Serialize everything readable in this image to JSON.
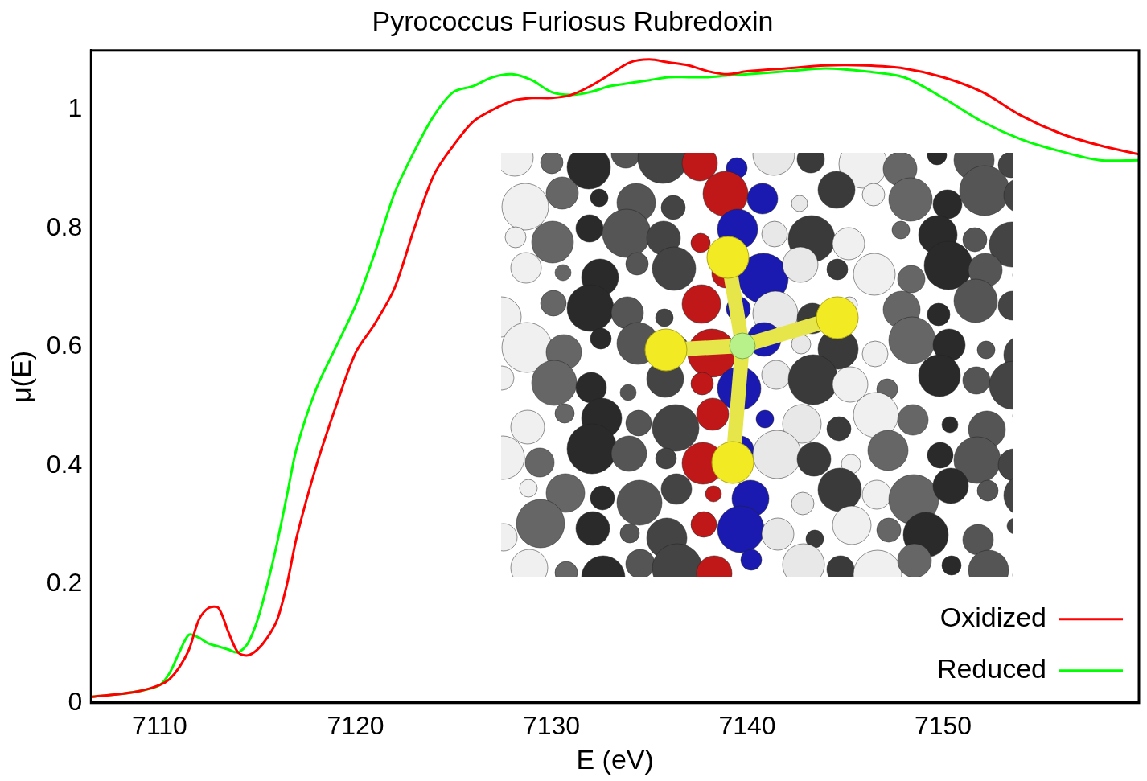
{
  "chart_data": {
    "type": "line",
    "title": "Pyrococcus Furiosus Rubredoxin",
    "x_label": "E (eV)",
    "y_label": "μ(E)",
    "x": [
      7106.5,
      7108,
      7109,
      7110,
      7110.5,
      7111,
      7111.5,
      7112,
      7112.5,
      7113,
      7113.5,
      7114,
      7114.5,
      7115,
      7115.5,
      7116,
      7116.5,
      7117,
      7118,
      7119,
      7120,
      7121,
      7122,
      7123,
      7124,
      7125,
      7126,
      7127,
      7128,
      7129,
      7130,
      7131,
      7132,
      7133,
      7134,
      7135,
      7136,
      7137,
      7138,
      7139,
      7140,
      7142,
      7144,
      7146,
      7148,
      7150,
      7152,
      7154,
      7156,
      7158,
      7160
    ],
    "series": [
      {
        "name": "Oxidized",
        "color": "#ff0000",
        "values": [
          0.01,
          0.015,
          0.02,
          0.03,
          0.04,
          0.06,
          0.09,
          0.14,
          0.16,
          0.16,
          0.12,
          0.085,
          0.08,
          0.09,
          0.11,
          0.14,
          0.2,
          0.28,
          0.4,
          0.5,
          0.59,
          0.64,
          0.7,
          0.8,
          0.89,
          0.94,
          0.98,
          1.0,
          1.015,
          1.02,
          1.02,
          1.025,
          1.04,
          1.06,
          1.08,
          1.085,
          1.08,
          1.075,
          1.065,
          1.06,
          1.065,
          1.07,
          1.075,
          1.075,
          1.07,
          1.055,
          1.03,
          0.99,
          0.96,
          0.94,
          0.925
        ]
      },
      {
        "name": "Reduced",
        "color": "#00ff00",
        "values": [
          0.01,
          0.015,
          0.02,
          0.03,
          0.05,
          0.085,
          0.115,
          0.11,
          0.1,
          0.095,
          0.09,
          0.085,
          0.1,
          0.14,
          0.2,
          0.27,
          0.35,
          0.43,
          0.53,
          0.6,
          0.67,
          0.76,
          0.86,
          0.93,
          0.99,
          1.03,
          1.04,
          1.055,
          1.06,
          1.05,
          1.03,
          1.025,
          1.03,
          1.04,
          1.045,
          1.05,
          1.055,
          1.055,
          1.055,
          1.058,
          1.06,
          1.065,
          1.07,
          1.065,
          1.055,
          1.02,
          0.98,
          0.95,
          0.93,
          0.915,
          0.915
        ]
      }
    ],
    "xlim": [
      7106.5,
      7160
    ],
    "xticks": [
      7110,
      7120,
      7130,
      7140,
      7150
    ],
    "ylim": [
      0,
      1.1
    ],
    "yticks": [
      0,
      0.2,
      0.4,
      0.6,
      0.8,
      1
    ],
    "grid": false,
    "legend": "lower right"
  }
}
